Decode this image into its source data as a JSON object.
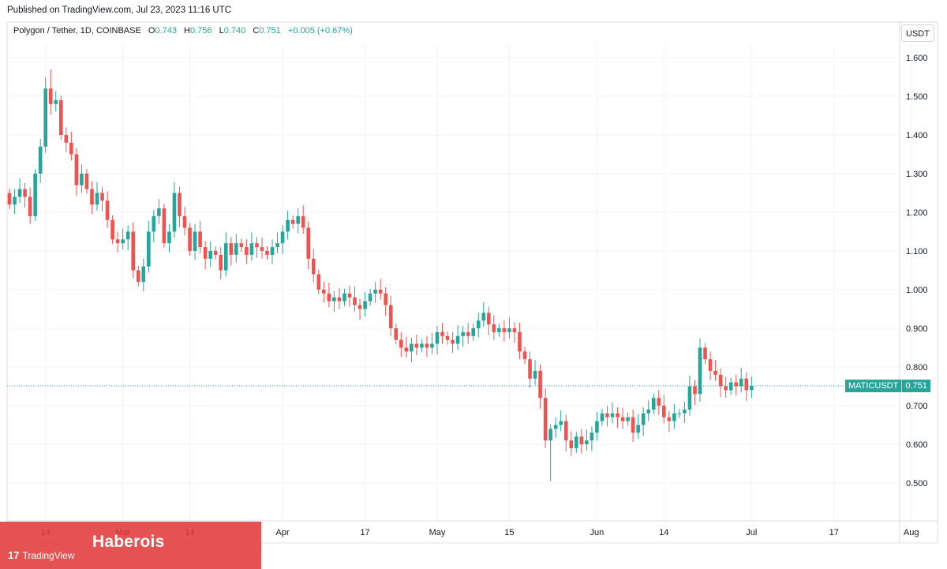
{
  "published": "Published on TradingView.com, Jul 23, 2023 11:16 UTC",
  "legend": {
    "symbol": "Polygon / Tether, 1D, COINBASE",
    "o_label": "O",
    "o": "0.743",
    "h_label": "H",
    "h": "0.756",
    "l_label": "L",
    "l": "0.740",
    "c_label": "C",
    "c": "0.751",
    "change": "+0.005 (+0.67%)"
  },
  "currency": "USDT",
  "last_price": {
    "label": "MATICUSDT",
    "value": "0.751"
  },
  "watermark": {
    "brand": "Haberois",
    "logo_text": "TradingView",
    "logo_mark": "17"
  },
  "colors": {
    "up": "#26a69a",
    "down": "#ef5350",
    "grid": "#f0f3fa",
    "axis_text": "#131722",
    "overlay": "#e03a3a"
  },
  "chart_data": {
    "type": "candlestick",
    "title": "Polygon / Tether, 1D, COINBASE",
    "interval": "1D",
    "ylim": [
      0.4,
      1.72
    ],
    "y_ticks": [
      "0.500",
      "0.600",
      "0.700",
      "0.800",
      "0.900",
      "1.000",
      "1.100",
      "1.200",
      "1.300",
      "1.400",
      "1.500",
      "1.600"
    ],
    "x_start_date": "2023-02-07",
    "x_ticks": [
      {
        "label": "14",
        "date": "2023-02-14"
      },
      {
        "label": "Mar",
        "date": "2023-03-01"
      },
      {
        "label": "14",
        "date": "2023-03-14"
      },
      {
        "label": "Apr",
        "date": "2023-04-01"
      },
      {
        "label": "17",
        "date": "2023-04-17"
      },
      {
        "label": "May",
        "date": "2023-05-01"
      },
      {
        "label": "15",
        "date": "2023-05-15"
      },
      {
        "label": "Jun",
        "date": "2023-06-01"
      },
      {
        "label": "14",
        "date": "2023-06-14"
      },
      {
        "label": "Jul",
        "date": "2023-07-01"
      },
      {
        "label": "17",
        "date": "2023-07-17"
      },
      {
        "label": "Aug",
        "date": "2023-08-01"
      }
    ],
    "last_value": 0.751,
    "closes": [
      1.22,
      1.24,
      1.26,
      1.24,
      1.19,
      1.3,
      1.37,
      1.52,
      1.48,
      1.49,
      1.4,
      1.38,
      1.35,
      1.27,
      1.3,
      1.26,
      1.22,
      1.25,
      1.23,
      1.18,
      1.13,
      1.12,
      1.13,
      1.15,
      1.05,
      1.02,
      1.06,
      1.15,
      1.19,
      1.21,
      1.12,
      1.15,
      1.25,
      1.19,
      1.16,
      1.1,
      1.15,
      1.11,
      1.08,
      1.1,
      1.09,
      1.05,
      1.12,
      1.09,
      1.12,
      1.11,
      1.09,
      1.12,
      1.11,
      1.1,
      1.09,
      1.11,
      1.12,
      1.15,
      1.18,
      1.17,
      1.19,
      1.16,
      1.08,
      1.04,
      1.0,
      0.99,
      0.97,
      0.98,
      0.97,
      0.99,
      0.98,
      0.96,
      0.95,
      0.97,
      0.99,
      1.0,
      0.99,
      0.96,
      0.9,
      0.87,
      0.85,
      0.84,
      0.86,
      0.85,
      0.86,
      0.85,
      0.86,
      0.89,
      0.88,
      0.87,
      0.86,
      0.88,
      0.89,
      0.88,
      0.9,
      0.92,
      0.94,
      0.91,
      0.89,
      0.9,
      0.89,
      0.9,
      0.89,
      0.84,
      0.82,
      0.77,
      0.79,
      0.72,
      0.61,
      0.64,
      0.65,
      0.66,
      0.61,
      0.59,
      0.62,
      0.6,
      0.61,
      0.63,
      0.66,
      0.68,
      0.67,
      0.68,
      0.67,
      0.66,
      0.67,
      0.63,
      0.65,
      0.68,
      0.69,
      0.72,
      0.7,
      0.67,
      0.66,
      0.68,
      0.68,
      0.69,
      0.75,
      0.73,
      0.85,
      0.82,
      0.79,
      0.78,
      0.75,
      0.74,
      0.76,
      0.75,
      0.77,
      0.74,
      0.751
    ],
    "extremes": {
      "high": 1.57,
      "low": 0.505
    }
  }
}
